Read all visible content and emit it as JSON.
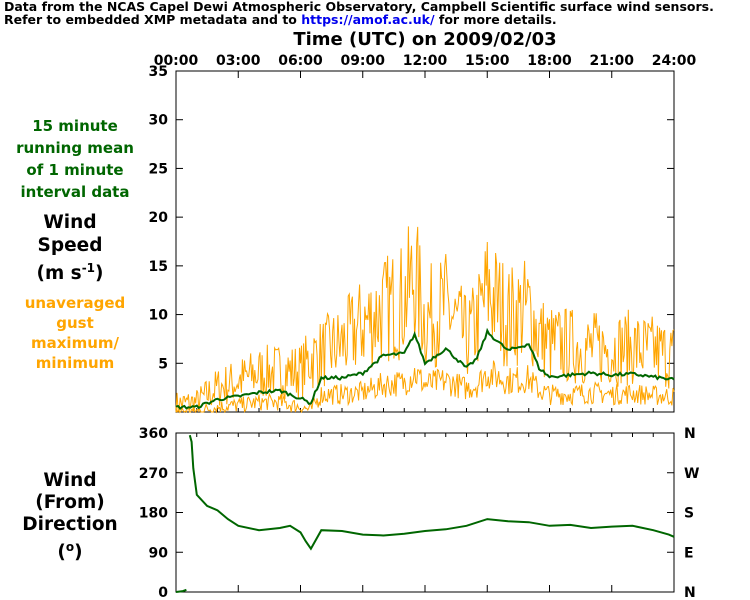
{
  "header": {
    "line1": "Data from the NCAS Capel Dewi Atmospheric Observatory, Campbell Scientific surface wind sensors.",
    "line2_pre": "Refer to embedded XMP metadata and to ",
    "link": "https://amof.ac.uk/",
    "line2_post": " for more details."
  },
  "title": "Time (UTC) on 2009/02/03",
  "speed_panel": {
    "mean_note": [
      "15 minute",
      "running mean",
      "of 1 minute",
      "interval data"
    ],
    "axis_label": {
      "line1": "Wind",
      "line2": "Speed",
      "unit_pre": "(m s",
      "unit_sup": "-1",
      "unit_post": ")"
    },
    "gust_note": [
      "unaveraged",
      "gust",
      "maximum/",
      "minimum"
    ]
  },
  "direction_panel": {
    "axis_label": {
      "line1": "Wind",
      "line2": "(From)",
      "line3_pre": "Direction",
      "unit_pre": "(",
      "unit_sup": "o",
      "unit_post": ")"
    }
  },
  "colors": {
    "mean": "#006600",
    "gust": "#ffa500",
    "direction": "#006600",
    "link": "#0000ee"
  },
  "chart_data": [
    {
      "type": "line",
      "title": "Time (UTC) on 2009/02/03",
      "xlabel": "Time (UTC)",
      "ylabel": "Wind Speed (m s-1)",
      "x_ticks": [
        "00:00",
        "03:00",
        "06:00",
        "09:00",
        "12:00",
        "15:00",
        "18:00",
        "21:00",
        "24:00"
      ],
      "xlim": [
        "00:00",
        "24:00"
      ],
      "ylim": [
        0,
        35
      ],
      "y_ticks": [
        5,
        10,
        15,
        20,
        25,
        30,
        35
      ],
      "grid": false,
      "series": [
        {
          "name": "15 minute running mean of 1 minute interval data",
          "x": [
            "00:00",
            "01:00",
            "02:00",
            "03:00",
            "04:00",
            "05:00",
            "06:00",
            "06:30",
            "07:00",
            "08:00",
            "09:00",
            "10:00",
            "11:00",
            "11:30",
            "12:00",
            "13:00",
            "14:00",
            "14:30",
            "15:00",
            "16:00",
            "17:00",
            "17:30",
            "18:00",
            "19:00",
            "20:00",
            "21:00",
            "22:00",
            "23:00",
            "24:00"
          ],
          "values": [
            0.5,
            0.5,
            1.3,
            1.6,
            2.0,
            2.2,
            1.4,
            0.9,
            3.5,
            3.5,
            4.0,
            5.8,
            6.0,
            8.0,
            5.0,
            6.5,
            4.5,
            5.5,
            8.2,
            6.3,
            7.0,
            4.5,
            3.6,
            3.8,
            4.0,
            3.8,
            3.9,
            3.6,
            3.3
          ]
        },
        {
          "name": "unaveraged gust maximum",
          "x": [
            "00:00",
            "01:00",
            "02:00",
            "03:00",
            "04:00",
            "05:00",
            "06:00",
            "06:30",
            "07:00",
            "08:00",
            "09:00",
            "10:00",
            "11:00",
            "11:30",
            "12:00",
            "13:00",
            "14:00",
            "14:30",
            "15:00",
            "16:00",
            "17:00",
            "17:30",
            "18:00",
            "19:00",
            "20:00",
            "21:00",
            "22:00",
            "23:00",
            "24:00"
          ],
          "values": [
            0.8,
            1.0,
            2.5,
            3.2,
            4.0,
            4.2,
            4.2,
            5.5,
            6.0,
            7.0,
            9.0,
            10.5,
            11.5,
            14.0,
            9.5,
            10.8,
            7.5,
            9.0,
            12.5,
            9.8,
            10.5,
            8.0,
            7.0,
            6.8,
            6.5,
            6.5,
            6.6,
            6.2,
            5.8
          ]
        },
        {
          "name": "unaveraged gust minimum",
          "x": [
            "00:00",
            "01:00",
            "02:00",
            "03:00",
            "04:00",
            "05:00",
            "06:00",
            "06:30",
            "07:00",
            "08:00",
            "09:00",
            "10:00",
            "11:00",
            "11:30",
            "12:00",
            "13:00",
            "14:00",
            "14:30",
            "15:00",
            "16:00",
            "17:00",
            "17:30",
            "18:00",
            "19:00",
            "20:00",
            "21:00",
            "22:00",
            "23:00",
            "24:00"
          ],
          "values": [
            0.1,
            0.1,
            0.5,
            0.7,
            1.0,
            1.0,
            0.5,
            0.2,
            1.8,
            1.8,
            2.0,
            2.8,
            3.0,
            4.0,
            2.8,
            3.2,
            2.4,
            2.8,
            4.0,
            3.2,
            3.4,
            2.2,
            1.8,
            1.8,
            2.0,
            1.8,
            1.9,
            1.7,
            1.6
          ]
        }
      ]
    },
    {
      "type": "line",
      "xlabel": "Time (UTC)",
      "ylabel": "Wind (From) Direction (o)",
      "xlim": [
        "00:00",
        "24:00"
      ],
      "ylim": [
        0,
        360
      ],
      "y_ticks": [
        0,
        90,
        180,
        270,
        360
      ],
      "right_ticks": [
        "N",
        "E",
        "S",
        "W",
        "N"
      ],
      "grid": false,
      "series": [
        {
          "name": "direction",
          "x": [
            "00:00",
            "00:20",
            "00:30",
            "00:40",
            "00:45",
            "00:50",
            "01:00",
            "01:30",
            "02:00",
            "02:30",
            "03:00",
            "04:00",
            "05:00",
            "05:30",
            "06:00",
            "06:15",
            "06:30",
            "07:00",
            "08:00",
            "09:00",
            "10:00",
            "11:00",
            "12:00",
            "13:00",
            "14:00",
            "15:00",
            "16:00",
            "17:00",
            "18:00",
            "19:00",
            "20:00",
            "21:00",
            "22:00",
            "23:00",
            "23:45",
            "24:00"
          ],
          "values": [
            0,
            2,
            5,
            355,
            340,
            280,
            220,
            195,
            185,
            165,
            150,
            140,
            145,
            150,
            135,
            115,
            98,
            140,
            138,
            130,
            128,
            132,
            138,
            142,
            150,
            165,
            160,
            158,
            150,
            152,
            145,
            148,
            150,
            140,
            130,
            125
          ]
        }
      ]
    }
  ]
}
